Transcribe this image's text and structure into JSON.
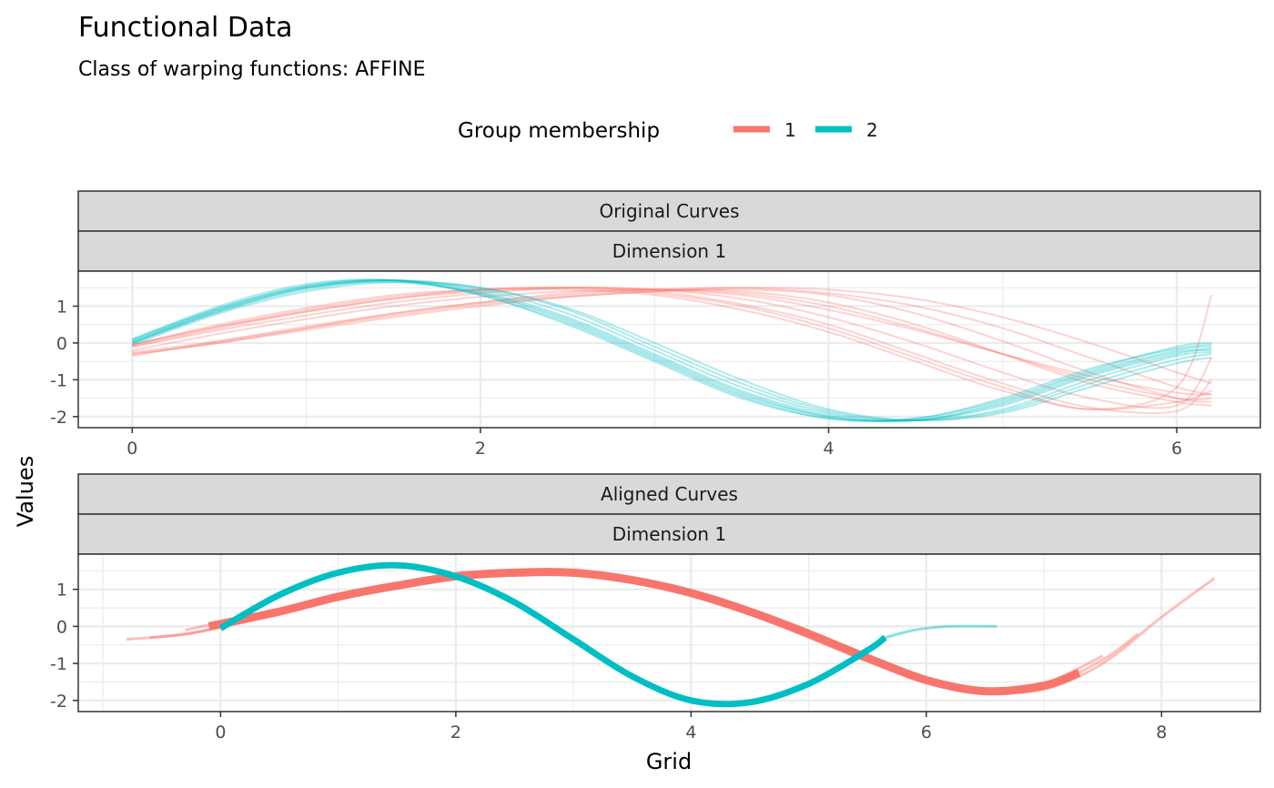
{
  "title": "Functional Data",
  "subtitle": "Class of warping functions: AFFINE",
  "legend": {
    "title": "Group membership",
    "placement": "top",
    "entries": [
      {
        "label": "1",
        "color": "#F8766D"
      },
      {
        "label": "2",
        "color": "#00BFC4"
      }
    ]
  },
  "xlabel": "Grid",
  "ylabel": "Values",
  "chart_data": [
    {
      "type": "line",
      "panel": "Original Curves",
      "strip": "Dimension 1",
      "xlim": [
        -0.31,
        6.48
      ],
      "ylim": [
        -2.3,
        1.95
      ],
      "xticks": [
        0,
        2,
        4,
        6
      ],
      "yticks": [
        1,
        0,
        -1,
        -2
      ],
      "grid": true,
      "series": [
        {
          "group": "1",
          "x": [
            0,
            0.5,
            1,
            1.5,
            2,
            2.5,
            3,
            3.5,
            4,
            4.5,
            5,
            5.5,
            6,
            6.2
          ],
          "values": [
            -0.05,
            0.45,
            0.85,
            1.2,
            1.4,
            1.5,
            1.45,
            1.3,
            0.9,
            0.35,
            -0.3,
            -0.9,
            -1.35,
            -1.4
          ]
        },
        {
          "group": "1",
          "x": [
            0,
            0.5,
            1,
            1.5,
            2,
            2.5,
            3,
            3.5,
            4,
            4.5,
            5,
            5.5,
            6,
            6.2
          ],
          "values": [
            -0.3,
            0.0,
            0.4,
            0.8,
            1.1,
            1.35,
            1.45,
            1.4,
            1.1,
            0.5,
            -0.3,
            -1.1,
            -1.6,
            -1.7
          ]
        },
        {
          "group": "1",
          "x": [
            0,
            0.5,
            1,
            1.5,
            2,
            2.5,
            3,
            3.5,
            4,
            4.5,
            5,
            5.5,
            6,
            6.2
          ],
          "values": [
            -0.35,
            0.05,
            0.45,
            0.8,
            1.1,
            1.3,
            1.45,
            1.5,
            1.35,
            1.0,
            0.4,
            -0.4,
            -1.2,
            -1.4
          ]
        },
        {
          "group": "1",
          "x": [
            0,
            0.5,
            1,
            1.5,
            2,
            2.5,
            3,
            3.5,
            4,
            4.5,
            5,
            5.5,
            6,
            6.2
          ],
          "values": [
            -0.05,
            0.5,
            0.95,
            1.3,
            1.45,
            1.45,
            1.3,
            0.9,
            0.3,
            -0.5,
            -1.3,
            -1.8,
            -1.6,
            -1.3
          ]
        },
        {
          "group": "1",
          "x": [
            0,
            0.5,
            1,
            1.5,
            2,
            2.5,
            3,
            3.5,
            4,
            4.5,
            5,
            5.5,
            6,
            6.2
          ],
          "values": [
            -0.25,
            0.05,
            0.4,
            0.75,
            1.05,
            1.25,
            1.4,
            1.45,
            1.3,
            0.8,
            0.05,
            -0.8,
            -1.5,
            -1.6
          ]
        },
        {
          "group": "1",
          "x": [
            0,
            0.5,
            1,
            1.5,
            2,
            2.5,
            3,
            3.5,
            4,
            4.5,
            5,
            5.5,
            6,
            6.2
          ],
          "values": [
            -0.2,
            0.25,
            0.65,
            1.0,
            1.25,
            1.4,
            1.45,
            1.35,
            1.0,
            0.4,
            -0.3,
            -1.0,
            -1.5,
            -1.5
          ]
        },
        {
          "group": "1",
          "x": [
            0,
            0.5,
            1,
            1.5,
            2,
            2.5,
            3,
            3.5,
            4,
            4.5,
            5,
            5.5,
            6,
            6.2
          ],
          "values": [
            -0.1,
            0.4,
            0.85,
            1.2,
            1.45,
            1.5,
            1.4,
            1.05,
            0.5,
            -0.3,
            -1.1,
            -1.75,
            -1.85,
            -1.0
          ]
        },
        {
          "group": "1",
          "x": [
            0,
            0.5,
            1,
            1.5,
            2,
            2.5,
            3,
            3.5,
            4,
            4.5,
            5,
            5.5,
            6,
            6.2
          ],
          "values": [
            -0.3,
            0.0,
            0.35,
            0.7,
            1.0,
            1.25,
            1.4,
            1.5,
            1.45,
            1.2,
            0.7,
            0.0,
            -0.8,
            -1.1
          ]
        },
        {
          "group": "1",
          "x": [
            0,
            0.5,
            1,
            1.5,
            2,
            2.5,
            3,
            3.5,
            4,
            4.5,
            5,
            5.5,
            6,
            6.2
          ],
          "values": [
            -0.1,
            0.35,
            0.75,
            1.1,
            1.35,
            1.5,
            1.45,
            1.2,
            0.7,
            0.0,
            -0.8,
            -1.5,
            -1.7,
            -0.4
          ]
        },
        {
          "group": "1",
          "x": [
            0,
            0.5,
            1,
            1.5,
            2,
            2.5,
            3,
            3.5,
            4,
            4.5,
            5,
            5.5,
            6,
            6.2
          ],
          "values": [
            -0.05,
            0.45,
            0.9,
            1.25,
            1.45,
            1.5,
            1.35,
            1.0,
            0.4,
            -0.4,
            -1.2,
            -1.8,
            -1.2,
            1.3
          ]
        },
        {
          "group": "2",
          "x": [
            0,
            0.5,
            1,
            1.5,
            2,
            2.5,
            3,
            3.5,
            4,
            4.5,
            5,
            5.5,
            6,
            6.2
          ],
          "values": [
            0.05,
            0.95,
            1.55,
            1.7,
            1.35,
            0.6,
            -0.4,
            -1.4,
            -2.0,
            -2.1,
            -1.6,
            -0.8,
            -0.2,
            -0.1
          ]
        },
        {
          "group": "2",
          "x": [
            0,
            0.5,
            1,
            1.5,
            2,
            2.5,
            3,
            3.5,
            4,
            4.5,
            5,
            5.5,
            6,
            6.2
          ],
          "values": [
            0.1,
            1.0,
            1.6,
            1.7,
            1.3,
            0.5,
            -0.5,
            -1.5,
            -2.05,
            -2.05,
            -1.5,
            -0.7,
            -0.15,
            -0.05
          ]
        },
        {
          "group": "2",
          "x": [
            0,
            0.5,
            1,
            1.5,
            2,
            2.5,
            3,
            3.5,
            4,
            4.5,
            5,
            5.5,
            6,
            6.2
          ],
          "values": [
            0.0,
            0.85,
            1.45,
            1.7,
            1.5,
            0.9,
            -0.1,
            -1.1,
            -1.85,
            -2.1,
            -1.85,
            -1.1,
            -0.45,
            -0.3
          ]
        },
        {
          "group": "2",
          "x": [
            0,
            0.5,
            1,
            1.5,
            2,
            2.5,
            3,
            3.5,
            4,
            4.5,
            5,
            5.5,
            6,
            6.2
          ],
          "values": [
            -0.05,
            0.8,
            1.4,
            1.65,
            1.5,
            0.95,
            0.0,
            -1.0,
            -1.8,
            -2.1,
            -1.9,
            -1.2,
            -0.55,
            -0.4
          ]
        },
        {
          "group": "2",
          "x": [
            0,
            0.5,
            1,
            1.5,
            2,
            2.5,
            3,
            3.5,
            4,
            4.5,
            5,
            5.5,
            6,
            6.2
          ],
          "values": [
            0.0,
            0.9,
            1.5,
            1.7,
            1.4,
            0.7,
            -0.3,
            -1.3,
            -1.95,
            -2.1,
            -1.7,
            -0.9,
            -0.3,
            -0.15
          ]
        },
        {
          "group": "2",
          "x": [
            0,
            0.5,
            1,
            1.5,
            2,
            2.5,
            3,
            3.5,
            4,
            4.5,
            5,
            5.5,
            6,
            6.2
          ],
          "values": [
            0.05,
            0.9,
            1.5,
            1.65,
            1.35,
            0.65,
            -0.35,
            -1.35,
            -2.0,
            -2.1,
            -1.65,
            -0.85,
            -0.25,
            -0.2
          ]
        },
        {
          "group": "2",
          "x": [
            0,
            0.5,
            1,
            1.5,
            2,
            2.5,
            3,
            3.5,
            4,
            4.5,
            5,
            5.5,
            6,
            6.2
          ],
          "values": [
            0.0,
            0.85,
            1.5,
            1.7,
            1.45,
            0.8,
            -0.2,
            -1.2,
            -1.9,
            -2.1,
            -1.8,
            -1.0,
            -0.35,
            -0.25
          ]
        },
        {
          "group": "2",
          "x": [
            0,
            0.5,
            1,
            1.5,
            2,
            2.5,
            3,
            3.5,
            4,
            4.5,
            5,
            5.5,
            6,
            6.2
          ],
          "values": [
            0.1,
            0.95,
            1.55,
            1.7,
            1.3,
            0.55,
            -0.45,
            -1.45,
            -2.05,
            -2.05,
            -1.55,
            -0.75,
            -0.1,
            0.0
          ]
        }
      ]
    },
    {
      "type": "line",
      "panel": "Aligned Curves",
      "strip": "Dimension 1",
      "xlim": [
        -1.21,
        8.84
      ],
      "ylim": [
        -2.3,
        1.95
      ],
      "xticks": [
        0,
        2,
        4,
        6,
        8
      ],
      "yticks": [
        1,
        0,
        -1,
        -2
      ],
      "grid": true,
      "series": [
        {
          "group": "1",
          "x": [
            -0.1,
            0.5,
            1,
            1.5,
            2,
            2.5,
            3,
            3.5,
            4,
            4.5,
            5,
            5.5,
            6,
            6.5,
            7,
            7.3
          ],
          "values": [
            0.0,
            0.4,
            0.8,
            1.1,
            1.35,
            1.45,
            1.45,
            1.25,
            0.9,
            0.4,
            -0.2,
            -0.85,
            -1.45,
            -1.75,
            -1.6,
            -1.25
          ]
        },
        {
          "group": "1",
          "x": [
            -0.8,
            -0.4,
            -0.1,
            0.5,
            1,
            1.5,
            2,
            2.5,
            3,
            3.5,
            4,
            4.5,
            5,
            5.5,
            6,
            6.5,
            7,
            7.5,
            8,
            8.45
          ],
          "values": [
            -0.35,
            -0.25,
            -0.1,
            0.35,
            0.75,
            1.05,
            1.3,
            1.45,
            1.45,
            1.3,
            0.95,
            0.45,
            -0.15,
            -0.8,
            -1.4,
            -1.75,
            -1.7,
            -1.0,
            0.25,
            1.3
          ]
        },
        {
          "group": "1",
          "x": [
            -0.6,
            -0.2,
            0.5,
            1,
            1.5,
            2,
            2.5,
            3,
            3.5,
            4,
            4.5,
            5,
            5.5,
            6,
            6.5,
            7,
            7.5,
            7.8
          ],
          "values": [
            -0.3,
            -0.15,
            0.4,
            0.8,
            1.1,
            1.35,
            1.5,
            1.45,
            1.3,
            0.9,
            0.4,
            -0.25,
            -0.9,
            -1.5,
            -1.8,
            -1.65,
            -0.9,
            -0.2
          ]
        },
        {
          "group": "1",
          "x": [
            -0.3,
            0.5,
            1,
            1.5,
            2,
            2.5,
            3,
            3.5,
            4,
            4.5,
            5,
            5.5,
            6,
            6.5,
            7,
            7.5
          ],
          "values": [
            -0.1,
            0.45,
            0.85,
            1.1,
            1.35,
            1.5,
            1.45,
            1.25,
            0.85,
            0.35,
            -0.3,
            -0.95,
            -1.5,
            -1.8,
            -1.55,
            -0.8
          ]
        },
        {
          "group": "2",
          "x": [
            0,
            0.5,
            1,
            1.5,
            2,
            2.5,
            3,
            3.5,
            4,
            4.5,
            5,
            5.5,
            5.65
          ],
          "values": [
            -0.05,
            0.85,
            1.45,
            1.65,
            1.35,
            0.65,
            -0.35,
            -1.35,
            -2.0,
            -2.05,
            -1.55,
            -0.65,
            -0.3
          ]
        },
        {
          "group": "2",
          "x": [
            5.6,
            5.9,
            6.2,
            6.6
          ],
          "values": [
            -0.35,
            -0.1,
            0.0,
            0.0
          ]
        }
      ]
    }
  ]
}
